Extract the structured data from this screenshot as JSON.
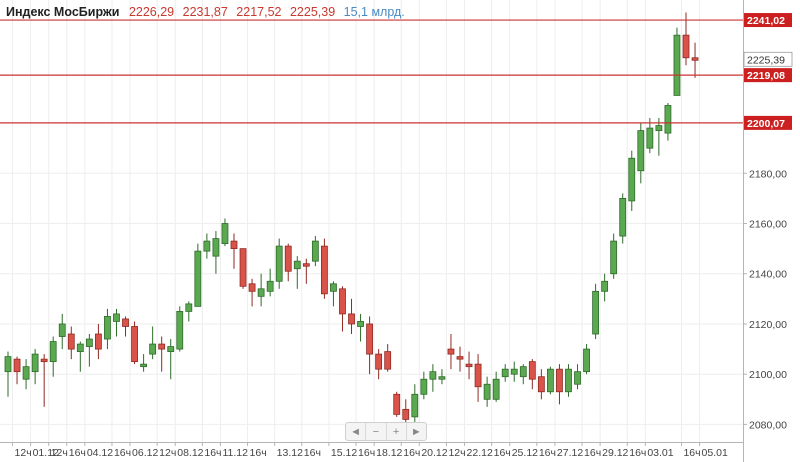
{
  "header": {
    "title": "Индекс МосБиржи",
    "open": "2226,29",
    "high": "2231,87",
    "low": "2217,52",
    "close": "2225,39",
    "volume": "15,1 млрд."
  },
  "zoom": {
    "left": "◄",
    "minus": "−",
    "plus": "+",
    "right": "►"
  },
  "colors": {
    "up_fill": "#5aa84f",
    "up_stroke": "#2e6b2a",
    "down_fill": "#d9534a",
    "down_stroke": "#8e2a22",
    "level_line": "#cc3333",
    "label_bg": "#cc1f1f",
    "grid": "#eeeeee",
    "current_bg": "#ffffff"
  },
  "chart_data": {
    "type": "candlestick",
    "title": "",
    "ylim": [
      2073,
      2249
    ],
    "y_ticks": [
      {
        "value": 2080,
        "label": "2080,00"
      },
      {
        "value": 2100,
        "label": "2100,00"
      },
      {
        "value": 2120,
        "label": "2120,00"
      },
      {
        "value": 2140,
        "label": "2140,00"
      },
      {
        "value": 2160,
        "label": "2160,00"
      },
      {
        "value": 2180,
        "label": "2180,00"
      }
    ],
    "x_ticks": [
      {
        "index": 0.5,
        "label": "12ч"
      },
      {
        "index": 2.5,
        "label": "01.12"
      },
      {
        "index": 4.5,
        "label": "12ч"
      },
      {
        "index": 6.5,
        "label": "16ч"
      },
      {
        "index": 8.5,
        "label": "04.12"
      },
      {
        "index": 11.5,
        "label": "16ч"
      },
      {
        "index": 13.5,
        "label": "06.12"
      },
      {
        "index": 16.5,
        "label": "12ч"
      },
      {
        "index": 18.5,
        "label": "08.12"
      },
      {
        "index": 21.5,
        "label": "16ч"
      },
      {
        "index": 23.5,
        "label": "11.12"
      },
      {
        "index": 26.5,
        "label": "16ч"
      },
      {
        "index": 29.5,
        "label": "13.12"
      },
      {
        "index": 32.5,
        "label": "16ч"
      },
      {
        "index": 35.5,
        "label": "15.12"
      },
      {
        "index": 38.5,
        "label": "16ч"
      },
      {
        "index": 40.5,
        "label": "18.12"
      },
      {
        "index": 43.5,
        "label": "16ч"
      },
      {
        "index": 45.5,
        "label": "20.12"
      },
      {
        "index": 48.5,
        "label": "12ч"
      },
      {
        "index": 50.5,
        "label": "22.12"
      },
      {
        "index": 53.5,
        "label": "16ч"
      },
      {
        "index": 55.5,
        "label": "25.12"
      },
      {
        "index": 58.5,
        "label": "16ч"
      },
      {
        "index": 60.5,
        "label": "27.12"
      },
      {
        "index": 63.5,
        "label": "16ч"
      },
      {
        "index": 65.5,
        "label": "29.12"
      },
      {
        "index": 68.5,
        "label": "16ч"
      },
      {
        "index": 70.5,
        "label": "03.01"
      },
      {
        "index": 74.5,
        "label": "16ч"
      },
      {
        "index": 76.5,
        "label": "05.01"
      }
    ],
    "levels": [
      {
        "value": 2241.02,
        "label": "2241,02"
      },
      {
        "value": 2219.08,
        "label": "2219,08"
      },
      {
        "value": 2200.07,
        "label": "2200,07"
      }
    ],
    "current": {
      "value": 2225.39,
      "label": "2225,39"
    },
    "candles": [
      {
        "o": 2101,
        "h": 2109,
        "l": 2091,
        "c": 2107
      },
      {
        "o": 2106,
        "h": 2107,
        "l": 2096,
        "c": 2101
      },
      {
        "o": 2098,
        "h": 2106,
        "l": 2094,
        "c": 2103
      },
      {
        "o": 2101,
        "h": 2110,
        "l": 2096,
        "c": 2108
      },
      {
        "o": 2106,
        "h": 2108,
        "l": 2087,
        "c": 2105
      },
      {
        "o": 2105,
        "h": 2115,
        "l": 2099,
        "c": 2113
      },
      {
        "o": 2115,
        "h": 2124,
        "l": 2110,
        "c": 2120
      },
      {
        "o": 2116,
        "h": 2119,
        "l": 2106,
        "c": 2110
      },
      {
        "o": 2109,
        "h": 2113,
        "l": 2101,
        "c": 2112
      },
      {
        "o": 2111,
        "h": 2116,
        "l": 2103,
        "c": 2114
      },
      {
        "o": 2116,
        "h": 2120,
        "l": 2106,
        "c": 2110
      },
      {
        "o": 2114,
        "h": 2126,
        "l": 2110,
        "c": 2123
      },
      {
        "o": 2121,
        "h": 2126,
        "l": 2115,
        "c": 2124
      },
      {
        "o": 2122,
        "h": 2123,
        "l": 2115,
        "c": 2119
      },
      {
        "o": 2119,
        "h": 2121,
        "l": 2104,
        "c": 2105
      },
      {
        "o": 2103,
        "h": 2108,
        "l": 2101,
        "c": 2104
      },
      {
        "o": 2108,
        "h": 2119,
        "l": 2106,
        "c": 2112
      },
      {
        "o": 2112,
        "h": 2115,
        "l": 2101,
        "c": 2110
      },
      {
        "o": 2109,
        "h": 2114,
        "l": 2098,
        "c": 2111
      },
      {
        "o": 2110,
        "h": 2127,
        "l": 2109,
        "c": 2125
      },
      {
        "o": 2125,
        "h": 2129,
        "l": 2121,
        "c": 2128
      },
      {
        "o": 2127,
        "h": 2152,
        "l": 2127,
        "c": 2149
      },
      {
        "o": 2149,
        "h": 2156,
        "l": 2146,
        "c": 2153
      },
      {
        "o": 2147,
        "h": 2157,
        "l": 2140,
        "c": 2154
      },
      {
        "o": 2152,
        "h": 2162,
        "l": 2151,
        "c": 2160
      },
      {
        "o": 2153,
        "h": 2156,
        "l": 2142,
        "c": 2150
      },
      {
        "o": 2150,
        "h": 2150,
        "l": 2134,
        "c": 2135
      },
      {
        "o": 2136,
        "h": 2138,
        "l": 2127,
        "c": 2133
      },
      {
        "o": 2131,
        "h": 2140,
        "l": 2127,
        "c": 2134
      },
      {
        "o": 2133,
        "h": 2142,
        "l": 2131,
        "c": 2137
      },
      {
        "o": 2137,
        "h": 2154,
        "l": 2134,
        "c": 2151
      },
      {
        "o": 2151,
        "h": 2152,
        "l": 2137,
        "c": 2141
      },
      {
        "o": 2142,
        "h": 2147,
        "l": 2134,
        "c": 2145
      },
      {
        "o": 2144,
        "h": 2146,
        "l": 2136,
        "c": 2143
      },
      {
        "o": 2145,
        "h": 2155,
        "l": 2143,
        "c": 2153
      },
      {
        "o": 2151,
        "h": 2154,
        "l": 2130,
        "c": 2132
      },
      {
        "o": 2133,
        "h": 2137,
        "l": 2127,
        "c": 2136
      },
      {
        "o": 2134,
        "h": 2135,
        "l": 2117,
        "c": 2124
      },
      {
        "o": 2124,
        "h": 2130,
        "l": 2116,
        "c": 2120
      },
      {
        "o": 2119,
        "h": 2124,
        "l": 2113,
        "c": 2121
      },
      {
        "o": 2120,
        "h": 2123,
        "l": 2100,
        "c": 2108
      },
      {
        "o": 2108,
        "h": 2110,
        "l": 2098,
        "c": 2102
      },
      {
        "o": 2109,
        "h": 2112,
        "l": 2101,
        "c": 2102
      },
      {
        "o": 2092,
        "h": 2093,
        "l": 2083,
        "c": 2084
      },
      {
        "o": 2086,
        "h": 2090,
        "l": 2080,
        "c": 2082
      },
      {
        "o": 2083,
        "h": 2096,
        "l": 2081,
        "c": 2092
      },
      {
        "o": 2092,
        "h": 2101,
        "l": 2090,
        "c": 2098
      },
      {
        "o": 2098,
        "h": 2104,
        "l": 2093,
        "c": 2101
      },
      {
        "o": 2098,
        "h": 2102,
        "l": 2096,
        "c": 2099
      },
      {
        "o": 2110,
        "h": 2116,
        "l": 2102,
        "c": 2108
      },
      {
        "o": 2107,
        "h": 2111,
        "l": 2101,
        "c": 2106
      },
      {
        "o": 2104,
        "h": 2109,
        "l": 2098,
        "c": 2103
      },
      {
        "o": 2104,
        "h": 2108,
        "l": 2089,
        "c": 2095
      },
      {
        "o": 2090,
        "h": 2099,
        "l": 2087,
        "c": 2096
      },
      {
        "o": 2090,
        "h": 2101,
        "l": 2089,
        "c": 2098
      },
      {
        "o": 2099,
        "h": 2104,
        "l": 2097,
        "c": 2102
      },
      {
        "o": 2100,
        "h": 2105,
        "l": 2097,
        "c": 2102
      },
      {
        "o": 2099,
        "h": 2104,
        "l": 2096,
        "c": 2103
      },
      {
        "o": 2105,
        "h": 2106,
        "l": 2094,
        "c": 2098
      },
      {
        "o": 2099,
        "h": 2102,
        "l": 2090,
        "c": 2093
      },
      {
        "o": 2093,
        "h": 2103,
        "l": 2092,
        "c": 2102
      },
      {
        "o": 2102,
        "h": 2104,
        "l": 2088,
        "c": 2093
      },
      {
        "o": 2093,
        "h": 2104,
        "l": 2091,
        "c": 2102
      },
      {
        "o": 2096,
        "h": 2104,
        "l": 2094,
        "c": 2101
      },
      {
        "o": 2101,
        "h": 2112,
        "l": 2100,
        "c": 2110
      },
      {
        "o": 2116,
        "h": 2136,
        "l": 2114,
        "c": 2133
      },
      {
        "o": 2133,
        "h": 2140,
        "l": 2129,
        "c": 2137
      },
      {
        "o": 2140,
        "h": 2156,
        "l": 2138,
        "c": 2153
      },
      {
        "o": 2155,
        "h": 2172,
        "l": 2152,
        "c": 2170
      },
      {
        "o": 2169,
        "h": 2189,
        "l": 2165,
        "c": 2186
      },
      {
        "o": 2181,
        "h": 2200,
        "l": 2176,
        "c": 2197
      },
      {
        "o": 2190,
        "h": 2202,
        "l": 2188,
        "c": 2198
      },
      {
        "o": 2197,
        "h": 2202,
        "l": 2187,
        "c": 2199
      },
      {
        "o": 2196,
        "h": 2208,
        "l": 2193,
        "c": 2207
      },
      {
        "o": 2211,
        "h": 2238,
        "l": 2211,
        "c": 2235
      },
      {
        "o": 2235,
        "h": 2244,
        "l": 2223,
        "c": 2226
      },
      {
        "o": 2226,
        "h": 2232,
        "l": 2218,
        "c": 2225
      }
    ]
  }
}
